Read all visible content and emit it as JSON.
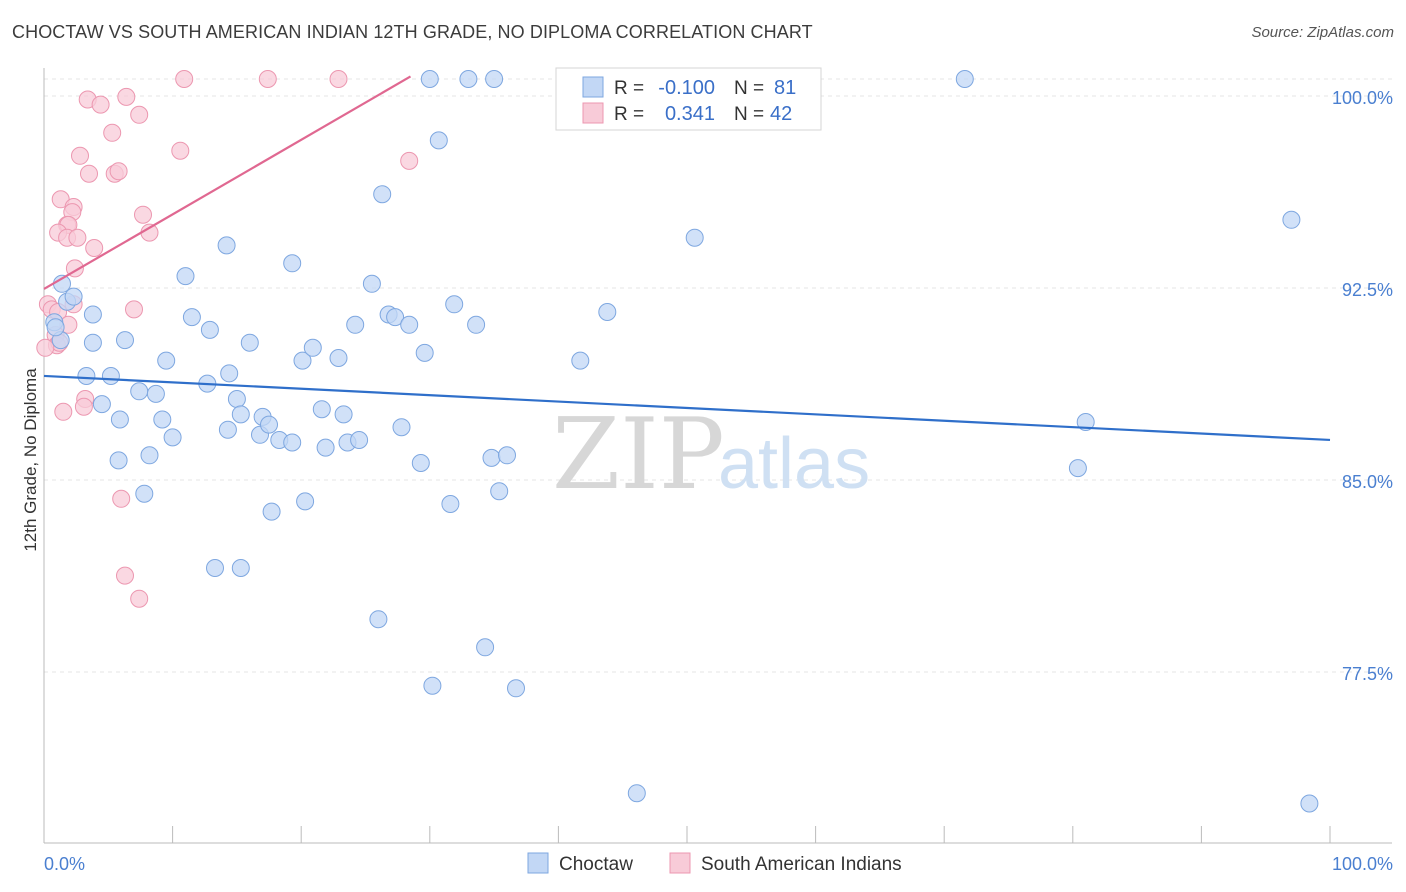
{
  "title": "CHOCTAW VS SOUTH AMERICAN INDIAN 12TH GRADE, NO DIPLOMA CORRELATION CHART",
  "source": "Source: ZipAtlas.com",
  "watermark": {
    "zip": "ZIP",
    "atlas": "atlas"
  },
  "legend": {
    "r_label": "R =",
    "n_label": "N =",
    "rows": [
      {
        "series": "Choctaw",
        "r": "-0.100",
        "n": "81"
      },
      {
        "series": "South American Indians",
        "r": "0.341",
        "n": "42"
      }
    ]
  },
  "colors": {
    "choctaw_fill": "#c2d7f5",
    "choctaw_stroke": "#7ea7e0",
    "choctaw_line": "#2f6fca",
    "sai_fill": "#f8cbd8",
    "sai_stroke": "#ec97b0",
    "sai_line": "#e06891",
    "grid": "#e4e4e4",
    "tick_text": "#4a7fd0"
  },
  "chart_data": {
    "type": "scatter",
    "title": "CHOCTAW VS SOUTH AMERICAN INDIAN 12TH GRADE, NO DIPLOMA CORRELATION CHART",
    "xlabel": "",
    "ylabel": "12th Grade, No Diploma",
    "xlim": [
      0,
      105
    ],
    "ylim": [
      70.5,
      101
    ],
    "x_ticks": [
      0,
      100
    ],
    "x_tick_labels": [
      "0.0%",
      "100.0%"
    ],
    "y_ticks": [
      77.5,
      85.0,
      92.5,
      100.0
    ],
    "y_tick_labels": [
      "77.5%",
      "85.0%",
      "92.5%",
      "100.0%"
    ],
    "grid": true,
    "legend_position": "top-center",
    "series": [
      {
        "name": "Choctaw",
        "r": -0.1,
        "n": 81,
        "trend": {
          "x": [
            0,
            100
          ],
          "y": [
            88.4,
            85.9
          ]
        },
        "points": [
          [
            0.8,
            90.5
          ],
          [
            1.4,
            92.0
          ],
          [
            1.8,
            91.3
          ],
          [
            2.3,
            91.5
          ],
          [
            1.3,
            89.8
          ],
          [
            0.9,
            90.3
          ],
          [
            3.8,
            90.8
          ],
          [
            3.8,
            89.7
          ],
          [
            5.2,
            88.4
          ],
          [
            3.3,
            88.4
          ],
          [
            4.5,
            87.3
          ],
          [
            6.3,
            89.8
          ],
          [
            7.4,
            87.8
          ],
          [
            8.7,
            87.7
          ],
          [
            9.5,
            89.0
          ],
          [
            9.2,
            86.7
          ],
          [
            10.0,
            86.0
          ],
          [
            5.9,
            86.7
          ],
          [
            5.8,
            85.1
          ],
          [
            8.2,
            85.3
          ],
          [
            7.8,
            83.8
          ],
          [
            11.0,
            92.3
          ],
          [
            11.5,
            90.7
          ],
          [
            12.7,
            88.1
          ],
          [
            12.9,
            90.2
          ],
          [
            14.3,
            86.3
          ],
          [
            14.4,
            88.5
          ],
          [
            15.0,
            87.5
          ],
          [
            14.2,
            93.5
          ],
          [
            15.3,
            86.9
          ],
          [
            16.0,
            89.7
          ],
          [
            17.0,
            86.8
          ],
          [
            16.8,
            86.1
          ],
          [
            17.5,
            86.5
          ],
          [
            18.3,
            85.9
          ],
          [
            19.3,
            85.8
          ],
          [
            20.1,
            89.0
          ],
          [
            19.3,
            92.8
          ],
          [
            20.9,
            89.5
          ],
          [
            21.6,
            87.1
          ],
          [
            21.9,
            85.6
          ],
          [
            22.9,
            89.1
          ],
          [
            23.3,
            86.9
          ],
          [
            23.6,
            85.8
          ],
          [
            24.2,
            90.4
          ],
          [
            24.5,
            85.9
          ],
          [
            25.5,
            92.0
          ],
          [
            26.3,
            95.5
          ],
          [
            26.8,
            90.8
          ],
          [
            27.3,
            90.7
          ],
          [
            27.8,
            86.4
          ],
          [
            28.4,
            90.4
          ],
          [
            29.3,
            85.0
          ],
          [
            29.6,
            89.3
          ],
          [
            30.2,
            76.3
          ],
          [
            30.7,
            97.6
          ],
          [
            31.6,
            83.4
          ],
          [
            31.9,
            91.2
          ],
          [
            33.6,
            90.4
          ],
          [
            34.3,
            77.8
          ],
          [
            34.8,
            85.2
          ],
          [
            35.4,
            83.9
          ],
          [
            36.0,
            85.3
          ],
          [
            36.7,
            76.2
          ],
          [
            41.7,
            89.0
          ],
          [
            43.8,
            90.9
          ],
          [
            46.1,
            72.1
          ],
          [
            50.6,
            93.8
          ],
          [
            26.0,
            78.9
          ],
          [
            20.3,
            83.5
          ],
          [
            17.7,
            83.1
          ],
          [
            15.3,
            80.9
          ],
          [
            13.3,
            80.9
          ],
          [
            30.0,
            100.0
          ],
          [
            33.0,
            100.0
          ],
          [
            35.0,
            100.0
          ],
          [
            71.6,
            100.0
          ],
          [
            81.0,
            86.6
          ],
          [
            80.4,
            84.8
          ],
          [
            97.0,
            94.5
          ],
          [
            98.4,
            71.7
          ]
        ]
      },
      {
        "name": "South American Indians",
        "r": 0.341,
        "n": 42,
        "trend": {
          "x": [
            0,
            28.5
          ],
          "y": [
            91.8,
            100.1
          ]
        },
        "points": [
          [
            3.4,
            99.2
          ],
          [
            4.4,
            99.0
          ],
          [
            6.4,
            99.3
          ],
          [
            5.3,
            97.9
          ],
          [
            7.4,
            98.6
          ],
          [
            10.6,
            97.2
          ],
          [
            2.8,
            97.0
          ],
          [
            3.5,
            96.3
          ],
          [
            5.5,
            96.3
          ],
          [
            5.8,
            96.4
          ],
          [
            1.3,
            95.3
          ],
          [
            2.3,
            95.0
          ],
          [
            2.2,
            94.8
          ],
          [
            7.7,
            94.7
          ],
          [
            1.8,
            94.3
          ],
          [
            1.9,
            94.3
          ],
          [
            1.1,
            94.0
          ],
          [
            8.2,
            94.0
          ],
          [
            1.8,
            93.8
          ],
          [
            2.6,
            93.8
          ],
          [
            3.9,
            93.4
          ],
          [
            2.4,
            92.6
          ],
          [
            0.3,
            91.2
          ],
          [
            0.6,
            91.0
          ],
          [
            1.1,
            90.9
          ],
          [
            7.0,
            91.0
          ],
          [
            2.3,
            91.2
          ],
          [
            1.9,
            90.4
          ],
          [
            0.9,
            90.0
          ],
          [
            1.0,
            89.6
          ],
          [
            1.2,
            89.7
          ],
          [
            0.1,
            89.5
          ],
          [
            3.2,
            87.5
          ],
          [
            3.1,
            87.2
          ],
          [
            1.5,
            87.0
          ],
          [
            6.0,
            83.6
          ],
          [
            6.3,
            80.6
          ],
          [
            7.4,
            79.7
          ],
          [
            10.9,
            100.0
          ],
          [
            17.4,
            100.0
          ],
          [
            22.9,
            100.0
          ],
          [
            28.4,
            96.8
          ]
        ]
      }
    ]
  }
}
